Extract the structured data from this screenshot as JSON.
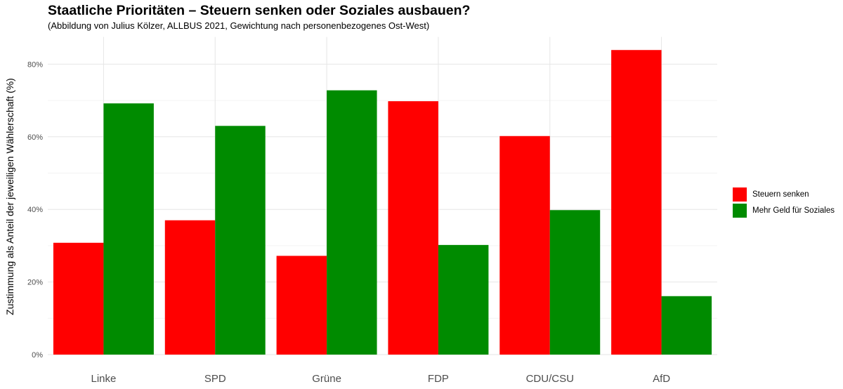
{
  "chart_data": {
    "type": "bar",
    "title": "Staatliche Prioritäten – Steuern senken oder Soziales ausbauen?",
    "subtitle": "(Abbildung von Julius Kölzer, ALLBUS 2021, Gewichtung nach personenbezogenes Ost-West)",
    "xlabel": "",
    "ylabel": "Zustimmung als Anteil der jeweiligen Wählerschaft (%)",
    "categories": [
      "Linke",
      "SPD",
      "Grüne",
      "FDP",
      "CDU/CSU",
      "AfD"
    ],
    "series": [
      {
        "name": "Steuern senken",
        "color": "#FF0000",
        "values": [
          30.8,
          37.0,
          27.2,
          69.8,
          60.2,
          83.9
        ]
      },
      {
        "name": "Mehr Geld für Soziales",
        "color": "#008B00",
        "values": [
          69.2,
          63.0,
          72.8,
          30.2,
          39.8,
          16.1
        ]
      }
    ],
    "ylim": [
      0,
      87.5
    ],
    "yticks": [
      0,
      20,
      40,
      60,
      80
    ],
    "ytick_labels": [
      "0%",
      "20%",
      "40%",
      "60%",
      "80%"
    ],
    "grid": true,
    "legend_position": "right"
  }
}
